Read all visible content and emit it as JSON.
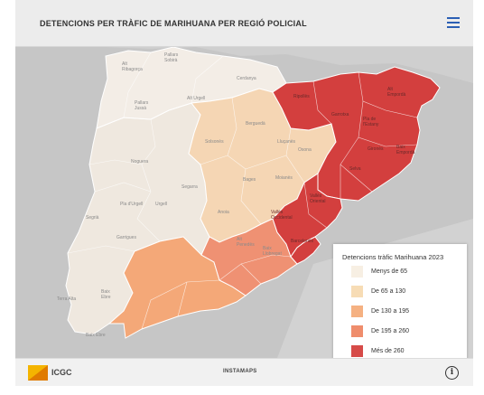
{
  "header": {
    "title": "DETENCIONS PER TRÀFIC DE MARIHUANA PER REGIÓ POLICIAL",
    "menu_icon": "hamburger-menu-icon",
    "accent_color": "#2b5fb4"
  },
  "map": {
    "region_labels": {
      "alt_ribagorca": "Alt\nRibagorça",
      "pallars_sobira": "Pallars\nSobirà",
      "cerdanya": "Cerdanya",
      "alt_urgell": "Alt Urgell",
      "pallars_jussa": "Pallars\nJussà",
      "ripolles": "Ripollès",
      "alt_emporda": "Alt\nEmpordà",
      "garrotxa": "Garrotxa",
      "pla_estany": "Pla de\nl'Estany",
      "bergueda": "Berguedà",
      "solsones": "Solsonès",
      "lluanes": "Lluçanès",
      "osona": "Osona",
      "girones": "Gironès",
      "baix_emporda": "Baix\nEmpordà",
      "noguera": "Noguera",
      "segarra": "Segarra",
      "bages": "Bages",
      "moianes": "Moianès",
      "selva": "Selva",
      "pla_urgell": "Pla d'Urgell",
      "urgell": "Urgell",
      "segria": "Segrià",
      "anoia": "Anoia",
      "valles_oriental": "Vallès\nOriental",
      "valles_occidental": "Vallès\nOccidental",
      "garrigues": "Garrigues",
      "alt_penedes": "Alt\nPenedès",
      "baix_llobregat": "Baix\nLlobregat",
      "barcelones": "Barcelonès",
      "terra_alta": "Terra Alta",
      "baix_ebre": "Baix\nEbre",
      "baix_ebre_south": "Baix Ebre"
    },
    "legend": {
      "title": "Detencions tràfic Marihuana 2023",
      "items": [
        {
          "label": "Menys de 65",
          "color": "#f7efe3"
        },
        {
          "label": "De 65 a 130",
          "color": "#f7dcb5"
        },
        {
          "label": "De 130 a 195",
          "color": "#f5b182"
        },
        {
          "label": "De 195 a 260",
          "color": "#ef8d6c"
        },
        {
          "label": "Més de 260",
          "color": "#d64b48"
        }
      ]
    },
    "regions": {
      "ponent": {
        "value_class": "Menys de 65",
        "color": "#efe8df"
      },
      "pirineu": {
        "value_class": "Menys de 65",
        "color": "#f3ede6"
      },
      "central": {
        "value_class": "De 65 a 130",
        "color": "#f5d6b4"
      },
      "camp_tarragona": {
        "value_class": "De 130 a 195",
        "color": "#f4a878"
      },
      "metropolitana_sud": {
        "value_class": "De 195 a 260",
        "color": "#ef9173"
      },
      "girona": {
        "value_class": "Més de 260",
        "color": "#d33f3e"
      },
      "metropolitana_nord": {
        "value_class": "Més de 260",
        "color": "#d33f3e"
      },
      "barcelona": {
        "value_class": "Més de 260",
        "color": "#d33f3e"
      }
    },
    "layers_icon": "layers-list-icon"
  },
  "footer": {
    "icgc_label": "ICGC",
    "brand_label": "INSTAMAPS",
    "info_icon": "info-icon"
  }
}
